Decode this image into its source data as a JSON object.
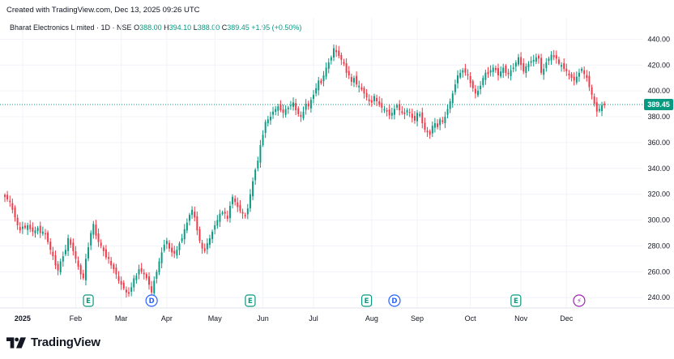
{
  "header": {
    "created_text": "Created with TradingView.com, Dec 13, 2025 09:26 UTC"
  },
  "legend": {
    "symbol": "Bharat Electronics Limited · 1D · NSE",
    "o_label": "O",
    "o_value": "388.00",
    "h_label": "H",
    "h_value": "394.10",
    "l_label": "L",
    "l_value": "388.00",
    "c_label": "C",
    "c_value": "389.45",
    "change": "+1.95 (+0.50%)"
  },
  "footer": {
    "logo_text": "TradingView"
  },
  "colors": {
    "up": "#089981",
    "down": "#f23645",
    "price_label": "#089981",
    "grid": "#f0f3fa",
    "event_earnings": "#089981",
    "event_dividend": "#2962ff",
    "event_split": "#9c27b0"
  },
  "chart_data": {
    "type": "candlestick",
    "interval": "1D",
    "y_axis_side": "right",
    "ylim": [
      232,
      444
    ],
    "yticks": [
      240,
      260,
      280,
      300,
      320,
      340,
      360,
      380,
      400,
      420,
      440
    ],
    "ytick_labels": [
      "240.00",
      "260.00",
      "280.00",
      "300.00",
      "320.00",
      "340.00",
      "360.00",
      "380.00",
      "400.00",
      "420.00",
      "440.00"
    ],
    "last_price": 389.45,
    "last_price_label": "389.45",
    "xlim": [
      0,
      252
    ],
    "xticks": [
      {
        "idx": 7,
        "label": "2025"
      },
      {
        "idx": 28,
        "label": "Feb"
      },
      {
        "idx": 46,
        "label": "Mar"
      },
      {
        "idx": 64,
        "label": "Apr"
      },
      {
        "idx": 83,
        "label": "May"
      },
      {
        "idx": 102,
        "label": "Jun"
      },
      {
        "idx": 122,
        "label": "Jul"
      },
      {
        "idx": 145,
        "label": "Aug"
      },
      {
        "idx": 163,
        "label": "Sep"
      },
      {
        "idx": 184,
        "label": "Oct"
      },
      {
        "idx": 204,
        "label": "Nov"
      },
      {
        "idx": 222,
        "label": "Dec"
      }
    ],
    "events": [
      {
        "idx": 33,
        "type": "earnings",
        "label": "E"
      },
      {
        "idx": 58,
        "type": "dividend",
        "label": "D"
      },
      {
        "idx": 97,
        "type": "earnings",
        "label": "E"
      },
      {
        "idx": 143,
        "type": "earnings",
        "label": "E"
      },
      {
        "idx": 154,
        "type": "dividend",
        "label": "D"
      },
      {
        "idx": 202,
        "type": "earnings",
        "label": "E"
      },
      {
        "idx": 227,
        "type": "split",
        "label": "⚡"
      }
    ],
    "closes": [
      318,
      316,
      314,
      308,
      302,
      296,
      292,
      295,
      294,
      296,
      293,
      291,
      292,
      294,
      290,
      291,
      289,
      283,
      277,
      272,
      265,
      261,
      268,
      272,
      277,
      286,
      281,
      276,
      270,
      264,
      258,
      255,
      270,
      279,
      290,
      297,
      288,
      283,
      280,
      276,
      271,
      270,
      265,
      262,
      258,
      253,
      250,
      247,
      244,
      243,
      248,
      255,
      257,
      262,
      260,
      258,
      255,
      250,
      244,
      253,
      260,
      268,
      275,
      281,
      284,
      278,
      275,
      274,
      277,
      282,
      286,
      293,
      298,
      304,
      308,
      302,
      292,
      284,
      278,
      276,
      282,
      286,
      291,
      296,
      300,
      305,
      306,
      305,
      301,
      311,
      318,
      314,
      310,
      307,
      305,
      303,
      309,
      320,
      330,
      339,
      346,
      358,
      366,
      376,
      378,
      380,
      384,
      386,
      388,
      385,
      383,
      386,
      387,
      389,
      391,
      385,
      382,
      380,
      384,
      390,
      388,
      393,
      397,
      402,
      408,
      406,
      412,
      418,
      422,
      426,
      433,
      430,
      427,
      424,
      421,
      414,
      412,
      407,
      410,
      405,
      404,
      401,
      398,
      395,
      392,
      391,
      396,
      392,
      389,
      387,
      386,
      384,
      381,
      383,
      386,
      389,
      385,
      383,
      382,
      385,
      383,
      379,
      377,
      383,
      382,
      375,
      370,
      368,
      366,
      373,
      375,
      372,
      378,
      376,
      380,
      386,
      392,
      398,
      405,
      412,
      414,
      416,
      414,
      412,
      406,
      402,
      398,
      400,
      404,
      410,
      414,
      413,
      416,
      418,
      416,
      412,
      415,
      418,
      414,
      413,
      416,
      418,
      422,
      426,
      420,
      415,
      419,
      421,
      423,
      424,
      426,
      425,
      414,
      417,
      422,
      425,
      428,
      426,
      425,
      421,
      420,
      417,
      415,
      412,
      410,
      408,
      411,
      414,
      417,
      413,
      410,
      403,
      397,
      390,
      384,
      386,
      389,
      389
    ]
  }
}
